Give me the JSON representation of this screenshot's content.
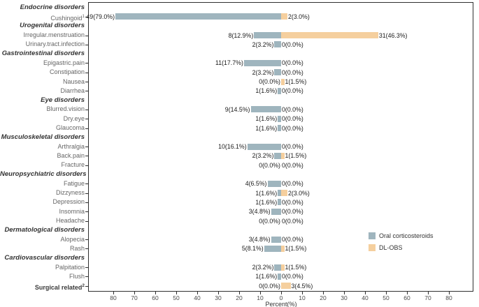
{
  "chart_data": {
    "type": "bar",
    "orientation": "horizontal-diverging",
    "xlabel": "Percent(%)",
    "xlim": [
      -89,
      89
    ],
    "tick_step": 10,
    "ticks": [
      -80,
      -70,
      -60,
      -50,
      -40,
      -30,
      -20,
      -10,
      0,
      10,
      20,
      30,
      40,
      50,
      60,
      70,
      80
    ],
    "grid": false,
    "legend_position": "inside-right",
    "legend": [
      {
        "name": "Oral corticosteroids",
        "color": "#9FB5BE"
      },
      {
        "name": "DL-OBS",
        "color": "#F5CF9E"
      }
    ],
    "colors": {
      "left_series": "#9FB5BE",
      "right_series": "#F5CF9E",
      "panel_border": "#2f2f2f"
    },
    "rows": [
      {
        "type": "header",
        "label": "Endocrine disorders"
      },
      {
        "type": "item",
        "label": "Cushingoid",
        "sup": "1",
        "left_pct": 79.0,
        "left_text": "49(79.0%)",
        "right_pct": 3.0,
        "right_text": "2(3.0%)"
      },
      {
        "type": "header",
        "label": "Urogenital disorders"
      },
      {
        "type": "item",
        "label": "Irregular.menstruation",
        "left_pct": 12.9,
        "left_text": "8(12.9%)",
        "right_pct": 46.3,
        "right_text": "31(46.3%)"
      },
      {
        "type": "item",
        "label": "Urinary.tract.infection",
        "left_pct": 3.2,
        "left_text": "2(3.2%)",
        "right_pct": 0,
        "right_text": "0(0.0%)"
      },
      {
        "type": "header",
        "label": "Gastrointestinal disorders"
      },
      {
        "type": "item",
        "label": "Epigastric.pain",
        "left_pct": 17.7,
        "left_text": "11(17.7%)",
        "right_pct": 0,
        "right_text": "0(0.0%)"
      },
      {
        "type": "item",
        "label": "Constipation",
        "left_pct": 3.2,
        "left_text": "2(3.2%)",
        "right_pct": 0,
        "right_text": "0(0.0%)"
      },
      {
        "type": "item",
        "label": "Nausea",
        "left_pct": 0,
        "left_text": "0(0.0%)",
        "right_pct": 1.5,
        "right_text": "1(1.5%)"
      },
      {
        "type": "item",
        "label": "Diarrhea",
        "left_pct": 1.6,
        "left_text": "1(1.6%)",
        "right_pct": 0,
        "right_text": "0(0.0%)"
      },
      {
        "type": "header",
        "label": "Eye disorders"
      },
      {
        "type": "item",
        "label": "Blurred.vision",
        "left_pct": 14.5,
        "left_text": "9(14.5%)",
        "right_pct": 0,
        "right_text": "0(0.0%)"
      },
      {
        "type": "item",
        "label": "Dry.eye",
        "left_pct": 1.6,
        "left_text": "1(1.6%)",
        "right_pct": 0,
        "right_text": "0(0.0%)"
      },
      {
        "type": "item",
        "label": "Glaucoma",
        "left_pct": 1.6,
        "left_text": "1(1.6%)",
        "right_pct": 0,
        "right_text": "0(0.0%)"
      },
      {
        "type": "header",
        "label": "Musculoskeletal disorders"
      },
      {
        "type": "item",
        "label": "Arthralgia",
        "left_pct": 16.1,
        "left_text": "10(16.1%)",
        "right_pct": 0,
        "right_text": "0(0.0%)"
      },
      {
        "type": "item",
        "label": "Back.pain",
        "left_pct": 3.2,
        "left_text": "2(3.2%)",
        "right_pct": 1.5,
        "right_text": "1(1.5%)"
      },
      {
        "type": "item",
        "label": "Fracture",
        "left_pct": 0,
        "left_text": "0(0.0%)",
        "right_pct": 0,
        "right_text": "0(0.0%)"
      },
      {
        "type": "header",
        "label": "Neuropsychiatric disorders"
      },
      {
        "type": "item",
        "label": "Fatigue",
        "left_pct": 6.5,
        "left_text": "4(6.5%)",
        "right_pct": 0,
        "right_text": "0(0.0%)"
      },
      {
        "type": "item",
        "label": "Dizzyness",
        "left_pct": 1.6,
        "left_text": "1(1.6%)",
        "right_pct": 3.0,
        "right_text": "2(3.0%)"
      },
      {
        "type": "item",
        "label": "Depression",
        "left_pct": 1.6,
        "left_text": "1(1.6%)",
        "right_pct": 0,
        "right_text": "0(0.0%)"
      },
      {
        "type": "item",
        "label": "Insomnia",
        "left_pct": 4.8,
        "left_text": "3(4.8%)",
        "right_pct": 0,
        "right_text": "0(0.0%)"
      },
      {
        "type": "item",
        "label": "Headache",
        "left_pct": 0,
        "left_text": "0(0.0%)",
        "right_pct": 0,
        "right_text": "0(0.0%)"
      },
      {
        "type": "header",
        "label": "Dermatological disorders"
      },
      {
        "type": "item",
        "label": "Alopecia",
        "left_pct": 4.8,
        "left_text": "3(4.8%)",
        "right_pct": 0,
        "right_text": "0(0.0%)"
      },
      {
        "type": "item",
        "label": "Rash",
        "left_pct": 8.1,
        "left_text": "5(8.1%)",
        "right_pct": 1.5,
        "right_text": "1(1.5%)"
      },
      {
        "type": "header",
        "label": "Cardiovascular disorders"
      },
      {
        "type": "item",
        "label": "Palpitation",
        "left_pct": 3.2,
        "left_text": "2(3.2%)",
        "right_pct": 1.5,
        "right_text": "1(1.5%)"
      },
      {
        "type": "item",
        "label": "Flush",
        "left_pct": 1.6,
        "left_text": "1(1.6%)",
        "right_pct": 0,
        "right_text": "0(0.0%)"
      },
      {
        "type": "item",
        "label": "Surgical related",
        "sup": "2",
        "bold": true,
        "left_pct": 0,
        "left_text": "0(0.0%)",
        "right_pct": 4.5,
        "right_text": "3(4.5%)"
      }
    ]
  }
}
